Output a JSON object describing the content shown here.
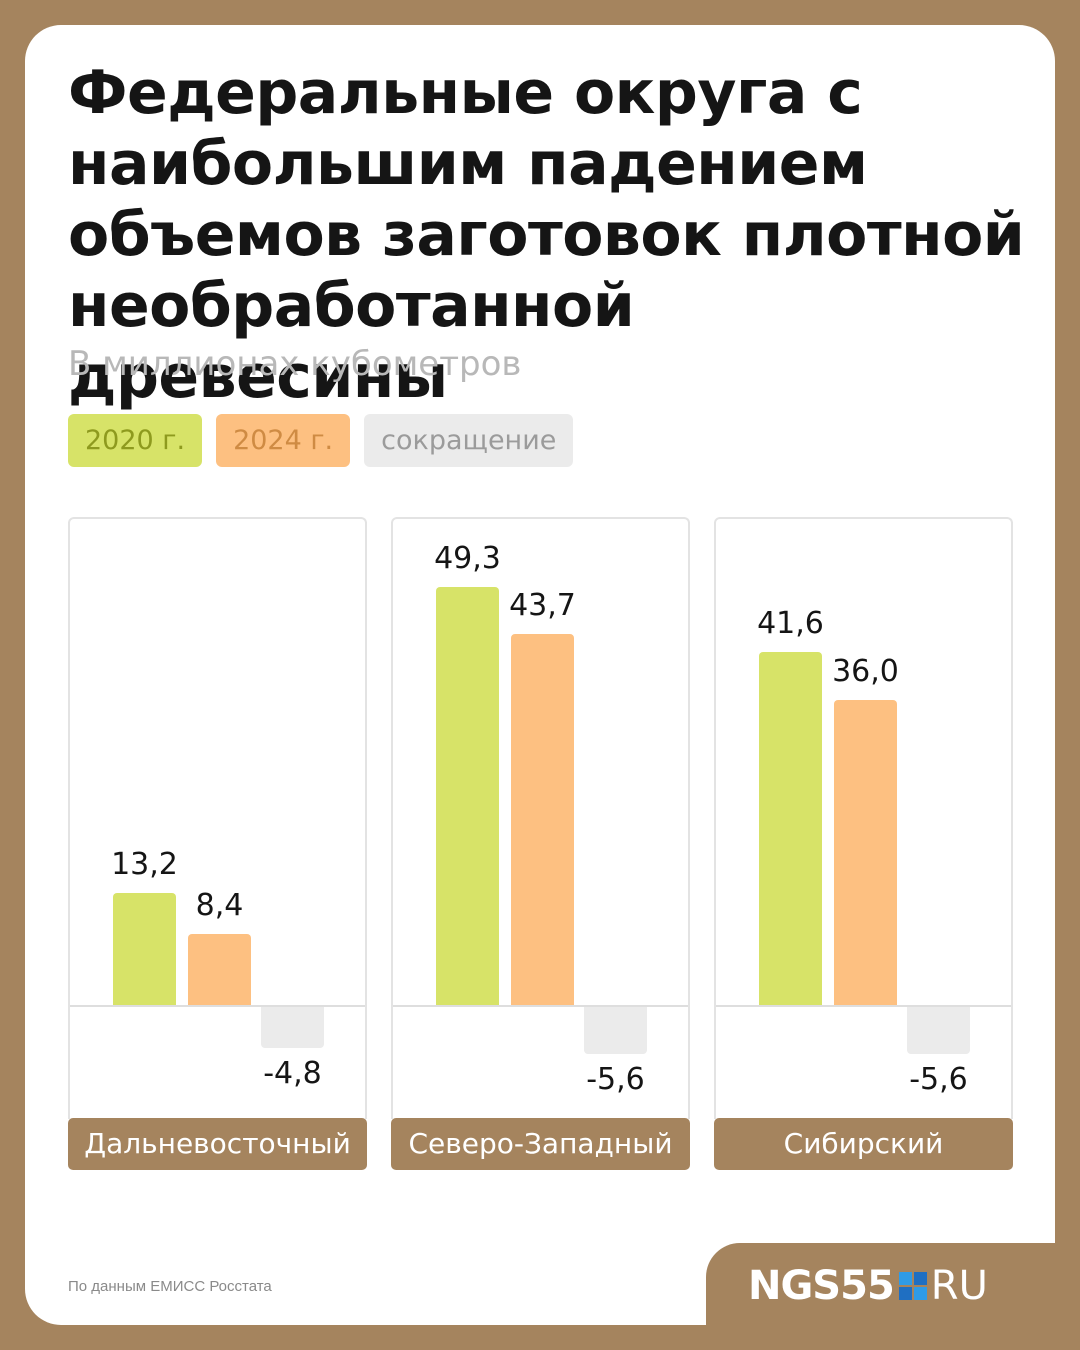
{
  "title": "Федеральные округа с наибольшим падением объемов заготовок плотной необработанной древесины",
  "subtitle": "В миллионах кубометров",
  "legend": {
    "y2020": "2020 г.",
    "y2024": "2024 г.",
    "drop": "сокращение"
  },
  "colors": {
    "y2020": "#d7e368",
    "y2024": "#fdc081",
    "drop": "#ebebeb",
    "brand": "#a5845e"
  },
  "chart_data": {
    "type": "bar",
    "title": "Федеральные округа с наибольшим падением объемов заготовок плотной необработанной древесины",
    "subtitle": "В миллионах кубометров",
    "categories": [
      "Дальневосточный",
      "Северо-Западный",
      "Сибирский"
    ],
    "series": [
      {
        "name": "2020 г.",
        "values": [
          13.2,
          49.3,
          41.6
        ]
      },
      {
        "name": "2024 г.",
        "values": [
          8.4,
          43.7,
          36.0
        ]
      },
      {
        "name": "сокращение",
        "values": [
          -4.8,
          -5.6,
          -5.6
        ]
      }
    ],
    "labels": {
      "2020 г.": [
        "13,2",
        "49,3",
        "41,6"
      ],
      "2024 г.": [
        "8,4",
        "43,7",
        "36,0"
      ],
      "сокращение": [
        "-4,8",
        "-5,6",
        "-5,6"
      ]
    },
    "legend_position": "top-left",
    "grid": false
  },
  "source": "По данным ЕМИСС Росстата",
  "logo": {
    "main": "NGS55",
    "suffix": "RU"
  }
}
